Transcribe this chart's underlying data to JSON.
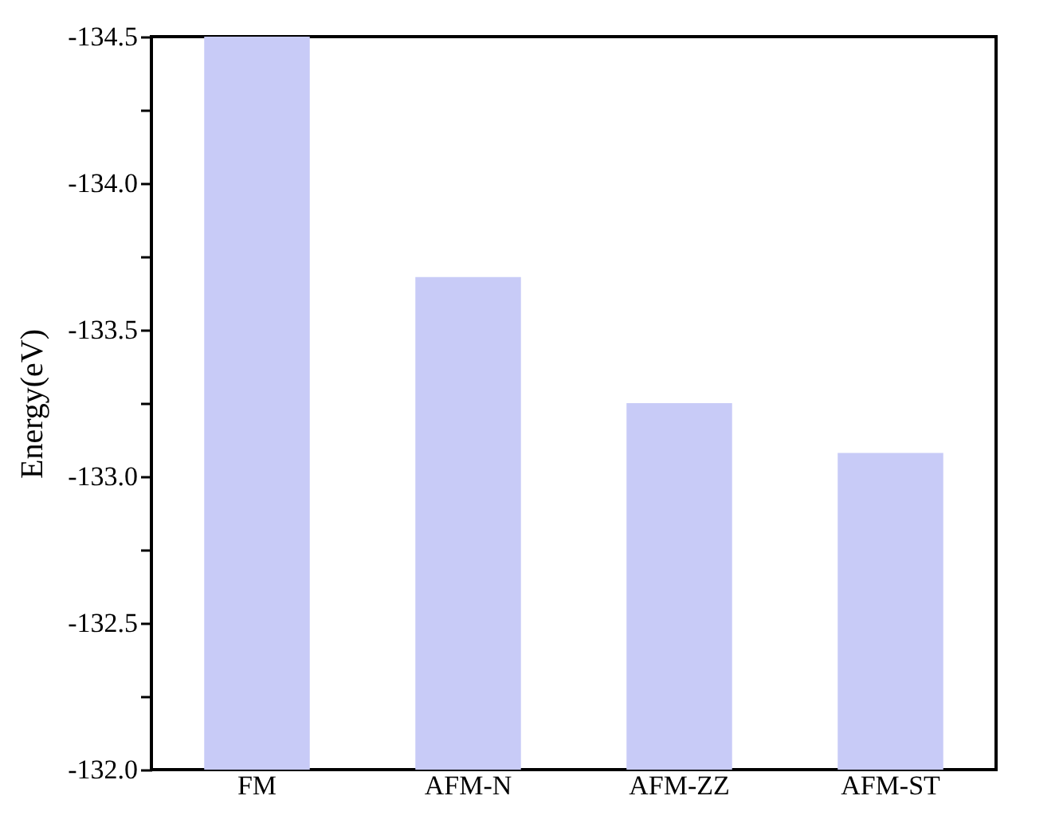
{
  "chart_data": {
    "type": "bar",
    "ylabel": "Energy(eV)",
    "categories": [
      "FM",
      "AFM-N",
      "AFM-ZZ",
      "AFM-ST"
    ],
    "values": [
      -134.5,
      -133.68,
      -133.25,
      -133.08
    ],
    "color": "#c8cbf7",
    "ylim": [
      -132.0,
      -134.5
    ],
    "yticks": [
      {
        "value": -132,
        "label": "-132.0"
      },
      {
        "value": -132.25,
        "label": null
      },
      {
        "value": -132.5,
        "label": "-132.5"
      },
      {
        "value": -132.75,
        "label": null
      },
      {
        "value": -133,
        "label": "-133.0"
      },
      {
        "value": -133.25,
        "label": null
      },
      {
        "value": -133.5,
        "label": "-133.5"
      },
      {
        "value": -133.75,
        "label": null
      },
      {
        "value": -134,
        "label": "-134.0"
      },
      {
        "value": -134.25,
        "label": null
      },
      {
        "value": -134.5,
        "label": "-134.5"
      }
    ],
    "grid": false
  }
}
